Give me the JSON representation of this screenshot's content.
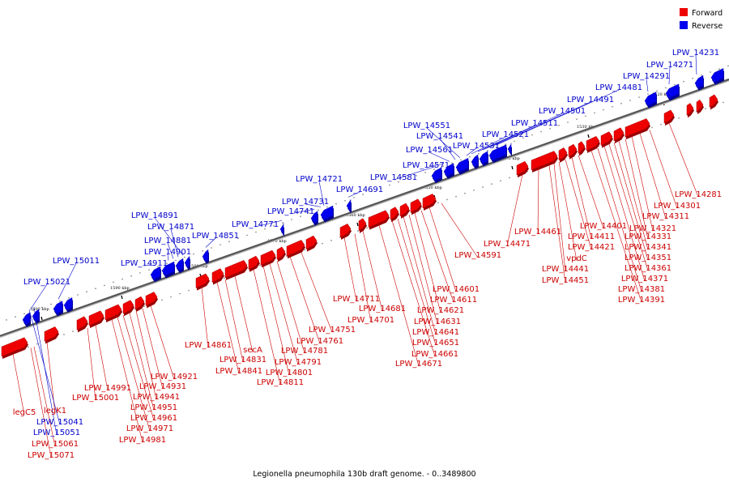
{
  "title": "Legionella pneumophila 130b draft genome. - 0..3489800",
  "legend": {
    "position": "top-right",
    "forward": {
      "label": "Forward",
      "color": "#ee0000"
    },
    "reverse": {
      "label": "Reverse",
      "color": "#0000ee"
    }
  },
  "scale_labels": [
    "1600 kbp",
    "1590 kbp",
    "1580 kbp",
    "1570 kbp",
    "1560 kbp",
    "1550 kbp",
    "1540 kbp",
    "1530 kbp",
    "1520 kbp"
  ],
  "genes_forward": [
    "legC5",
    "LPW_15071",
    "LPW_15061",
    "legK1",
    "LPW_15001",
    "LPW_14991",
    "LPW_14981",
    "LPW_14971",
    "LPW_14961",
    "LPW_14951",
    "LPW_14941",
    "LPW_14931",
    "LPW_14921",
    "LPW_14861",
    "LPW_14841",
    "LPW_14831",
    "secA",
    "LPW_14811",
    "LPW_14801",
    "LPW_14791",
    "LPW_14781",
    "LPW_14761",
    "LPW_14751",
    "LPW_14711",
    "LPW_14701",
    "LPW_14681",
    "LPW_14671",
    "LPW_14661",
    "LPW_14651",
    "LPW_14641",
    "LPW_14631",
    "LPW_14621",
    "LPW_14611",
    "LPW_14601",
    "LPW_14591",
    "LPW_14471",
    "LPW_14461",
    "LPW_14451",
    "LPW_14441",
    "vpdC",
    "LPW_14421",
    "LPW_14411",
    "LPW_14401",
    "LPW_14391",
    "LPW_14381",
    "LPW_14371",
    "LPW_14361",
    "LPW_14351",
    "LPW_14341",
    "LPW_14331",
    "LPW_14321",
    "LPW_14311",
    "LPW_14301",
    "LPW_14281"
  ],
  "genes_reverse": [
    "LPW_15051",
    "LPW_15041",
    "LPW_15021",
    "LPW_15011",
    "LPW_14911",
    "LPW_14901",
    "LPW_14881",
    "LPW_14871",
    "LPW_14891",
    "LPW_14851",
    "LPW_14771",
    "LPW_14741",
    "LPW_14731",
    "LPW_14721",
    "LPW_14691",
    "LPW_14581",
    "LPW_14571",
    "LPW_14561",
    "LPW_14541",
    "LPW_14551",
    "LPW_14531",
    "LPW_14521",
    "LPW_14511",
    "LPW_14501",
    "LPW_14491",
    "LPW_14481",
    "LPW_14291",
    "LPW_14271",
    "LPW_14231"
  ]
}
